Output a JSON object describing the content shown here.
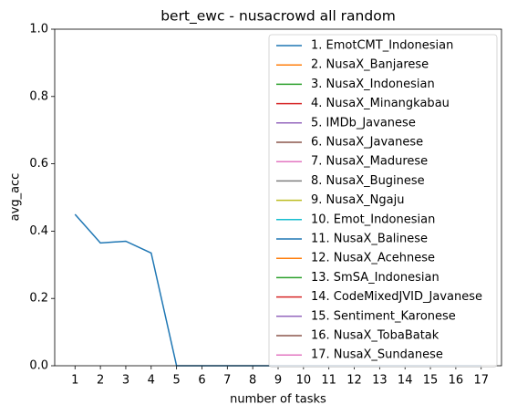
{
  "chart_data": {
    "type": "line",
    "title": "bert_ewc - nusacrowd all random",
    "xlabel": "number of tasks",
    "ylabel": "avg_acc",
    "x": [
      1,
      2,
      3,
      4,
      5,
      6,
      7,
      8,
      9,
      10,
      11,
      12,
      13,
      14,
      15,
      16,
      17
    ],
    "xlim": [
      0.2,
      17.8
    ],
    "xticks": [
      1,
      2,
      3,
      4,
      5,
      6,
      7,
      8,
      9,
      10,
      11,
      12,
      13,
      14,
      15,
      16,
      17
    ],
    "ylim": [
      0,
      1
    ],
    "yticks": [
      {
        "value": 0,
        "label": "0.0"
      },
      {
        "value": 0.2,
        "label": "0.2"
      },
      {
        "value": 0.4,
        "label": "0.4"
      },
      {
        "value": 0.6,
        "label": "0.6"
      },
      {
        "value": 0.8,
        "label": "0.8"
      },
      {
        "value": 1,
        "label": "1.0"
      }
    ],
    "legend": "upper right",
    "series": [
      {
        "name": "1. EmotCMT_Indonesian",
        "color": "#1f77b4",
        "values": [
          0.45,
          0.365,
          0.37,
          0.335,
          0,
          0,
          0,
          0,
          0,
          0,
          0,
          0,
          0,
          0,
          0,
          0,
          0
        ]
      },
      {
        "name": "2. NusaX_Banjarese",
        "color": "#ff7f0e",
        "values": [
          null,
          null,
          null,
          null,
          null,
          null,
          null,
          null,
          null,
          null,
          null,
          null,
          null,
          null,
          null,
          null,
          null
        ]
      },
      {
        "name": "3. NusaX_Indonesian",
        "color": "#2ca02c",
        "values": [
          null,
          null,
          null,
          null,
          null,
          null,
          null,
          null,
          null,
          null,
          null,
          null,
          null,
          null,
          null,
          null,
          null
        ]
      },
      {
        "name": "4. NusaX_Minangkabau",
        "color": "#d62728",
        "values": [
          null,
          null,
          null,
          null,
          null,
          null,
          null,
          null,
          null,
          null,
          null,
          null,
          null,
          null,
          null,
          null,
          null
        ]
      },
      {
        "name": "5. IMDb_Javanese",
        "color": "#9467bd",
        "values": [
          null,
          null,
          null,
          null,
          null,
          null,
          null,
          null,
          null,
          null,
          null,
          null,
          null,
          null,
          null,
          null,
          null
        ]
      },
      {
        "name": "6. NusaX_Javanese",
        "color": "#8c564b",
        "values": [
          null,
          null,
          null,
          null,
          null,
          null,
          null,
          null,
          null,
          null,
          null,
          null,
          null,
          null,
          null,
          null,
          null
        ]
      },
      {
        "name": "7. NusaX_Madurese",
        "color": "#e377c2",
        "values": [
          null,
          null,
          null,
          null,
          null,
          null,
          null,
          null,
          null,
          null,
          null,
          null,
          null,
          null,
          null,
          null,
          null
        ]
      },
      {
        "name": "8. NusaX_Buginese",
        "color": "#7f7f7f",
        "values": [
          null,
          null,
          null,
          null,
          null,
          null,
          null,
          null,
          null,
          null,
          null,
          null,
          null,
          null,
          null,
          null,
          null
        ]
      },
      {
        "name": "9. NusaX_Ngaju",
        "color": "#bcbd22",
        "values": [
          null,
          null,
          null,
          null,
          null,
          null,
          null,
          null,
          null,
          null,
          null,
          null,
          null,
          null,
          null,
          null,
          null
        ]
      },
      {
        "name": "10. Emot_Indonesian",
        "color": "#17becf",
        "values": [
          null,
          null,
          null,
          null,
          null,
          null,
          null,
          null,
          null,
          null,
          null,
          null,
          null,
          null,
          null,
          null,
          null
        ]
      },
      {
        "name": "11. NusaX_Balinese",
        "color": "#1f77b4",
        "values": [
          null,
          null,
          null,
          null,
          null,
          null,
          null,
          null,
          null,
          null,
          null,
          null,
          null,
          null,
          null,
          null,
          null
        ]
      },
      {
        "name": "12. NusaX_Acehnese",
        "color": "#ff7f0e",
        "values": [
          null,
          null,
          null,
          null,
          null,
          null,
          null,
          null,
          null,
          null,
          null,
          null,
          null,
          null,
          null,
          null,
          null
        ]
      },
      {
        "name": "13. SmSA_Indonesian",
        "color": "#2ca02c",
        "values": [
          null,
          null,
          null,
          null,
          null,
          null,
          null,
          null,
          null,
          null,
          null,
          null,
          null,
          null,
          null,
          null,
          null
        ]
      },
      {
        "name": "14. CodeMixedJVID_Javanese",
        "color": "#d62728",
        "values": [
          null,
          null,
          null,
          null,
          null,
          null,
          null,
          null,
          null,
          null,
          null,
          null,
          null,
          null,
          null,
          null,
          null
        ]
      },
      {
        "name": "15. Sentiment_Karonese",
        "color": "#9467bd",
        "values": [
          null,
          null,
          null,
          null,
          null,
          null,
          null,
          null,
          null,
          null,
          null,
          null,
          null,
          null,
          null,
          null,
          null
        ]
      },
      {
        "name": "16. NusaX_TobaBatak",
        "color": "#8c564b",
        "values": [
          null,
          null,
          null,
          null,
          null,
          null,
          null,
          null,
          null,
          null,
          null,
          null,
          null,
          null,
          null,
          null,
          null
        ]
      },
      {
        "name": "17. NusaX_Sundanese",
        "color": "#e377c2",
        "values": [
          null,
          null,
          null,
          null,
          null,
          null,
          null,
          null,
          null,
          null,
          null,
          null,
          null,
          null,
          null,
          null,
          null
        ]
      }
    ]
  }
}
